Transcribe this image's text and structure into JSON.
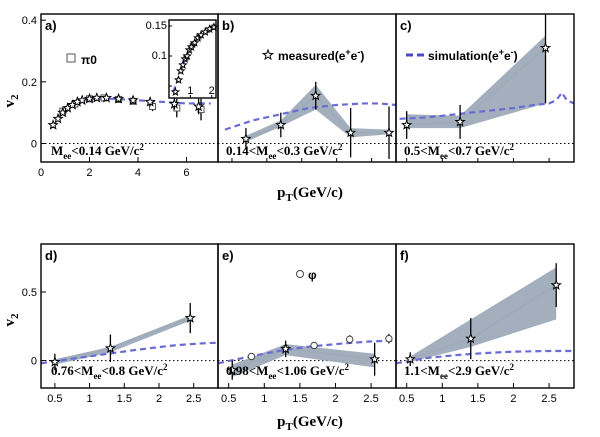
{
  "ylabel": "v2",
  "xlabel": "pT(GeV/c)",
  "colors": {
    "simulation": "#6b6bd6",
    "band": "#9eabb8",
    "markers": "#000000"
  },
  "chart_data": [
    {
      "id": "a",
      "type": "scatter",
      "tag": "a)",
      "annotation": "Mee<0.14 GeV/c2",
      "legend": "π0",
      "xlim": [
        0,
        7.3
      ],
      "ylim": [
        -0.06,
        0.42
      ],
      "xticks": [
        0,
        2,
        4,
        6
      ],
      "yticks": [
        0,
        0.2,
        0.4
      ],
      "series": [
        {
          "name": "measured(e+e-)",
          "marker": "star",
          "points": [
            [
              0.5,
              0.06
            ],
            [
              0.7,
              0.08
            ],
            [
              0.9,
              0.1
            ],
            [
              1.1,
              0.115
            ],
            [
              1.3,
              0.125
            ],
            [
              1.5,
              0.135
            ],
            [
              1.7,
              0.14
            ],
            [
              2.0,
              0.145
            ],
            [
              2.3,
              0.148
            ],
            [
              2.7,
              0.148
            ],
            [
              3.2,
              0.145
            ],
            [
              3.8,
              0.14
            ],
            [
              4.5,
              0.135
            ],
            [
              5.5,
              0.128
            ],
            [
              6.5,
              0.12
            ]
          ],
          "err": [
            0.005,
            0.005,
            0.006,
            0.006,
            0.007,
            0.007,
            0.008,
            0.008,
            0.009,
            0.01,
            0.011,
            0.012,
            0.014,
            0.018,
            0.025
          ]
        },
        {
          "name": "π0",
          "marker": "square",
          "points": [
            [
              0.9,
              0.105
            ],
            [
              1.4,
              0.128
            ],
            [
              2.0,
              0.145
            ],
            [
              2.6,
              0.148
            ],
            [
              3.2,
              0.143
            ],
            [
              3.8,
              0.137
            ],
            [
              4.6,
              0.12
            ],
            [
              5.6,
              0.115
            ],
            [
              6.6,
              0.11
            ]
          ],
          "err": [
            0.004,
            0.005,
            0.006,
            0.007,
            0.008,
            0.009,
            0.015,
            0.03,
            0.035
          ]
        },
        {
          "name": "simulation(e+e-)",
          "marker": "dash",
          "points": [
            [
              0.4,
              0.05
            ],
            [
              0.8,
              0.1
            ],
            [
              1.2,
              0.12
            ],
            [
              1.6,
              0.135
            ],
            [
              2.2,
              0.145
            ],
            [
              3,
              0.145
            ],
            [
              4,
              0.14
            ],
            [
              5,
              0.135
            ],
            [
              6,
              0.13
            ],
            [
              7,
              0.13
            ]
          ]
        }
      ],
      "inset": {
        "xlim": [
          0,
          2.2
        ],
        "ylim": [
          0.03,
          0.16
        ],
        "xticks": [
          1,
          2
        ],
        "yticks": [
          0.05,
          0.1,
          0.15
        ],
        "ytick_labels": [
          "",
          "0.1",
          "0.15"
        ],
        "stars": [
          [
            0.3,
            0.04
          ],
          [
            0.45,
            0.06
          ],
          [
            0.55,
            0.075
          ],
          [
            0.65,
            0.085
          ],
          [
            0.75,
            0.095
          ],
          [
            0.85,
            0.1
          ],
          [
            0.95,
            0.11
          ],
          [
            1.05,
            0.115
          ],
          [
            1.2,
            0.122
          ],
          [
            1.35,
            0.13
          ],
          [
            1.5,
            0.135
          ],
          [
            1.7,
            0.14
          ],
          [
            1.9,
            0.145
          ],
          [
            2.1,
            0.148
          ]
        ],
        "squares": [
          [
            0.8,
            0.097
          ],
          [
            1.1,
            0.118
          ],
          [
            1.4,
            0.132
          ],
          [
            1.8,
            0.143
          ],
          [
            2.1,
            0.148
          ]
        ],
        "sim": [
          [
            0.2,
            0.04
          ],
          [
            0.5,
            0.07
          ],
          [
            0.8,
            0.1
          ],
          [
            1.1,
            0.118
          ],
          [
            1.5,
            0.135
          ],
          [
            2.0,
            0.145
          ],
          [
            2.2,
            0.147
          ]
        ]
      }
    },
    {
      "id": "b",
      "type": "scatter",
      "tag": "b)",
      "annotation": "0.14<Mee<0.3 GeV/c2",
      "legend": "measured(e+e-)",
      "xlim": [
        0.3,
        2.85
      ],
      "ylim": [
        -0.06,
        0.42
      ],
      "points": [
        [
          0.7,
          0.015
        ],
        [
          1.2,
          0.06
        ],
        [
          1.7,
          0.155
        ],
        [
          2.2,
          0.035
        ],
        [
          2.75,
          0.035
        ]
      ],
      "err": [
        0.035,
        0.04,
        0.045,
        0.08,
        0.085
      ],
      "band_lo": [
        0.005,
        0.055,
        0.11,
        0.02,
        0.03
      ],
      "band_hi": [
        0.025,
        0.075,
        0.19,
        0.05,
        0.045
      ],
      "sim": [
        [
          0.4,
          0.045
        ],
        [
          0.8,
          0.075
        ],
        [
          1.2,
          0.095
        ],
        [
          1.6,
          0.115
        ],
        [
          2.0,
          0.125
        ],
        [
          2.4,
          0.13
        ],
        [
          2.6,
          0.13
        ],
        [
          2.85,
          0.125
        ]
      ]
    },
    {
      "id": "c",
      "type": "scatter",
      "tag": "c)",
      "annotation": "0.5<Mee<0.7 GeV/c2",
      "legend": "simulation(e+e-)",
      "xlim": [
        0.35,
        2.85
      ],
      "ylim": [
        -0.06,
        0.42
      ],
      "points": [
        [
          0.5,
          0.06
        ],
        [
          1.25,
          0.07
        ],
        [
          2.45,
          0.31
        ]
      ],
      "err": [
        0.045,
        0.055,
        0.18
      ],
      "band_lo": [
        0.05,
        0.05,
        0.13
      ],
      "band_hi": [
        0.095,
        0.09,
        0.35
      ],
      "sim": [
        [
          0.4,
          0.08
        ],
        [
          0.8,
          0.085
        ],
        [
          1.2,
          0.095
        ],
        [
          1.6,
          0.105
        ],
        [
          2.0,
          0.115
        ],
        [
          2.3,
          0.125
        ],
        [
          2.5,
          0.13
        ],
        [
          2.6,
          0.14
        ],
        [
          2.68,
          0.165
        ],
        [
          2.75,
          0.14
        ],
        [
          2.85,
          0.13
        ]
      ]
    },
    {
      "id": "d",
      "type": "scatter",
      "tag": "d)",
      "annotation": "0.76<Mee<0.8 GeV/c2",
      "xlim": [
        0.3,
        2.85
      ],
      "ylim": [
        -0.2,
        0.85
      ],
      "xticks": [
        0.5,
        1,
        1.5,
        2,
        2.5
      ],
      "yticks": [
        0,
        0.5
      ],
      "points": [
        [
          0.5,
          -0.01
        ],
        [
          1.3,
          0.09
        ],
        [
          2.45,
          0.31
        ]
      ],
      "err": [
        0.06,
        0.1,
        0.11
      ],
      "band_lo": [
        -0.03,
        0.06,
        0.29
      ],
      "band_hi": [
        0.01,
        0.1,
        0.33
      ],
      "sim": [
        [
          0.3,
          -0.02
        ],
        [
          0.7,
          0.01
        ],
        [
          1.2,
          0.045
        ],
        [
          1.7,
          0.08
        ],
        [
          2.2,
          0.11
        ],
        [
          2.6,
          0.125
        ],
        [
          2.85,
          0.13
        ]
      ]
    },
    {
      "id": "e",
      "type": "scatter",
      "tag": "e)",
      "annotation": "0.98<Mee<1.06 GeV/c2",
      "legend": "φ",
      "xlim": [
        0.35,
        2.85
      ],
      "ylim": [
        -0.2,
        0.85
      ],
      "xticks": [
        0.5,
        1,
        1.5,
        2,
        2.5
      ],
      "points": [
        [
          0.55,
          -0.07
        ],
        [
          1.3,
          0.085
        ],
        [
          2.55,
          0.01
        ]
      ],
      "err": [
        0.07,
        0.06,
        0.12
      ],
      "band_lo": [
        -0.12,
        0.04,
        -0.05
      ],
      "band_hi": [
        -0.03,
        0.12,
        0.05
      ],
      "phi": [
        [
          0.82,
          0.03
        ],
        [
          1.3,
          0.09
        ],
        [
          1.7,
          0.11
        ],
        [
          2.2,
          0.155
        ],
        [
          2.75,
          0.16
        ]
      ],
      "phi_err": [
        0.01,
        0.015,
        0.02,
        0.03,
        0.035
      ],
      "sim": [
        [
          0.35,
          -0.02
        ],
        [
          0.8,
          0.03
        ],
        [
          1.2,
          0.07
        ],
        [
          1.6,
          0.1
        ],
        [
          2.0,
          0.12
        ],
        [
          2.5,
          0.14
        ],
        [
          2.85,
          0.145
        ]
      ]
    },
    {
      "id": "f",
      "type": "scatter",
      "tag": "f)",
      "annotation": "1.1<Mee<2.9 GeV/c2",
      "xlim": [
        0.35,
        2.85
      ],
      "ylim": [
        -0.2,
        0.85
      ],
      "xticks": [
        0.5,
        1,
        1.5,
        2,
        2.5
      ],
      "points": [
        [
          0.55,
          0.01
        ],
        [
          1.4,
          0.16
        ],
        [
          2.6,
          0.55
        ]
      ],
      "err": [
        0.05,
        0.15,
        0.16
      ],
      "band_lo": [
        -0.01,
        0.1,
        0.3
      ],
      "band_hi": [
        0.03,
        0.3,
        0.68
      ],
      "sim": [
        [
          0.35,
          -0.02
        ],
        [
          0.8,
          0.02
        ],
        [
          1.2,
          0.04
        ],
        [
          1.6,
          0.055
        ],
        [
          2.0,
          0.065
        ],
        [
          2.5,
          0.07
        ],
        [
          2.85,
          0.07
        ]
      ]
    }
  ]
}
